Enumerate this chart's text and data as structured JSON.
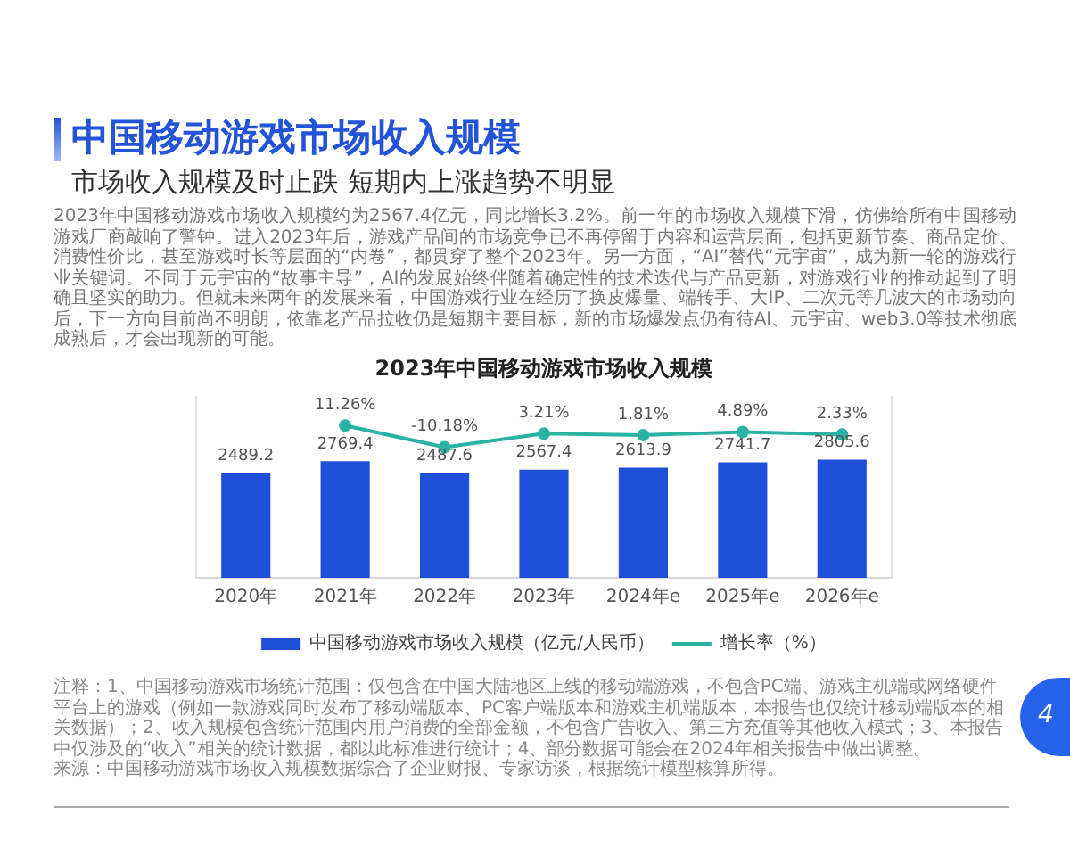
{
  "chart_data": {
    "type": "bar",
    "title": "2023年中国移动游戏市场收入规模",
    "categories": [
      "2020年",
      "2021年",
      "2022年",
      "2023年",
      "2024年e",
      "2025年e",
      "2026年e"
    ],
    "series": [
      {
        "name": "中国移动游戏市场收入规模（亿元/人民币）",
        "color": "#1f4fd8",
        "values": [
          2489.2,
          2769.4,
          2487.6,
          2567.4,
          2613.9,
          2741.7,
          2805.6
        ],
        "value_labels": [
          "2489.2",
          "2769.4",
          "2487.6",
          "2567.4",
          "2613.9",
          "2741.7",
          "2805.6"
        ]
      },
      {
        "name": "增长率（%）",
        "type": "line",
        "axis": "y2",
        "color": "#2ab3a3",
        "values": [
          null,
          11.26,
          -10.18,
          3.21,
          1.81,
          4.89,
          2.33
        ],
        "value_labels": [
          null,
          "11.26%",
          "-10.18%",
          "3.21%",
          "1.81%",
          "4.89%",
          "2.33%"
        ]
      }
    ],
    "ylim": [
      0,
      4300
    ],
    "y2lim": [
      -140,
      40
    ],
    "tick_labels": "x",
    "legend": "bottom",
    "marker": "circle",
    "line_style": "solid",
    "annotations": [
      "中国移动游戏市场收入规模",
      "市场收入规模及时止跌 短期内上涨趋势不明显",
      "2023年中国移动游戏市场收入规模约为2567.4亿元，同比增长3.2%。前一年的市场收入规模下滑，仿佛给所有中国移动游戏厂商敲响了警钟。进入2023年后，游戏产品间的市场竞争已不再停留于内容和运营层面，包括更新节奏、商品定价、消费性价比，甚至游戏时长等层面的“内卷”，都贯穿了整个2023年。另一方面，“AI”替代“元宇宙”，成为新一轮的游戏行业关键词。不同于元宇宙的“故事主导”，AI的发展始终伴随着确定性的技术迭代与产品更新，对游戏行业的推动起到了明确且坚实的助力。但就未来两年的发展来看，中国游戏行业在经历了换皮爆量、端转手、大IP、二次元等几波大的市场动向后，下一方向目前尚不明朗，依靠老产品拉收仍是短期主要目标，新的市场爆发点仍有待AI、元宇宙、web3.0等技术彻底成熟后，才会出现新的可能。",
      "注释：1、中国移动游戏市场统计范围：仅包含在中国大陆地区上线的移动端游戏，不包含PC端、游戏主机端或网络硬件平台上的游戏（例如一款游戏同时发布了移动端版本、PC客户端版本和游戏主机端版本，本报告也仅统计移动端版本的相关数据）；2、收入规模包含统计范围内用户消费的全部金额，不包含广告收入、第三方充值等其他收入模式；3、本报告中仅涉及的“收入”相关的统计数据，都以此标准进行统计；4、部分数据可能会在2024年相关报告中做出调整。",
      "来源：中国移动游戏市场收入规模数据综合了企业财报、专家访谈，根据统计模型核算所得。",
      "4"
    ]
  }
}
